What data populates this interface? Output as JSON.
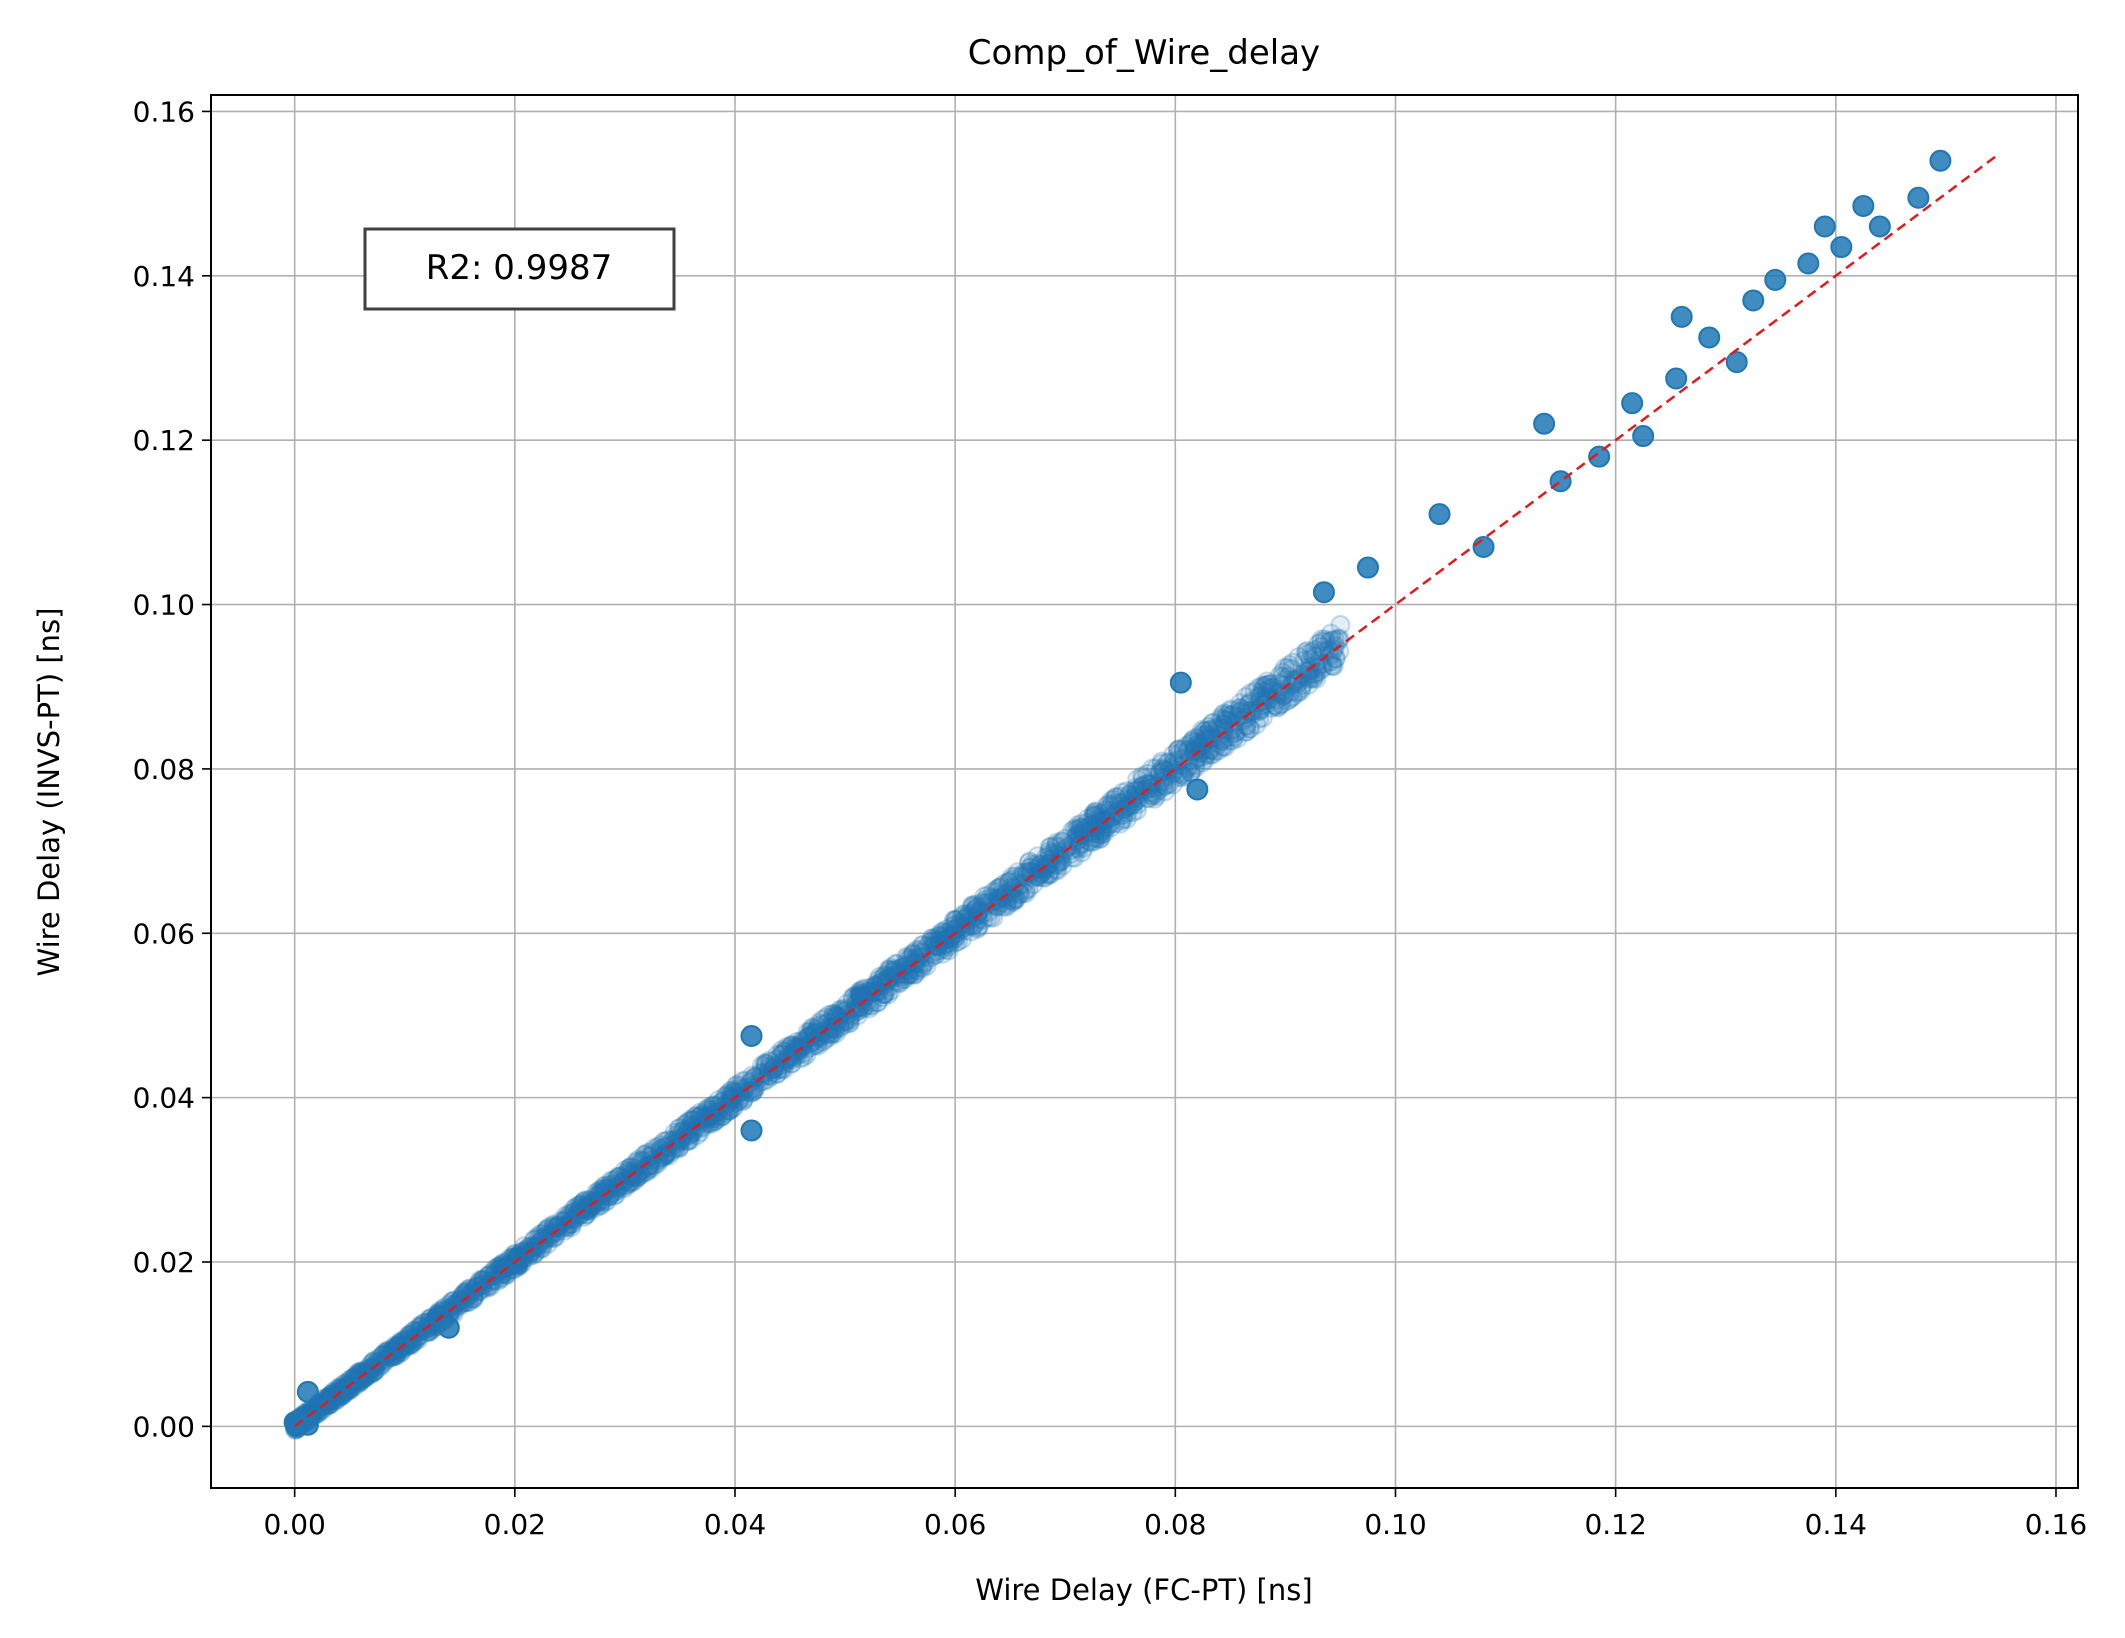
{
  "chart_data": {
    "type": "scatter",
    "title": "Comp_of_Wire_delay",
    "xlabel": "Wire Delay (FC-PT) [ns]",
    "ylabel": "Wire Delay (INVS-PT) [ns]",
    "xlim": [
      -0.0076,
      0.162
    ],
    "ylim": [
      -0.0075,
      0.162
    ],
    "xticks": [
      "0.00",
      "0.02",
      "0.04",
      "0.06",
      "0.08",
      "0.10",
      "0.12",
      "0.14",
      "0.16"
    ],
    "yticks": [
      "0.00",
      "0.02",
      "0.04",
      "0.06",
      "0.08",
      "0.10",
      "0.12",
      "0.14",
      "0.16"
    ],
    "grid": true,
    "annotation": "R2: 0.9987",
    "annotation_position": "top-left",
    "marker_color": "#1f77b4",
    "reference_line": {
      "label": "y = x",
      "color": "#e31a1c",
      "style": "dashed",
      "from": [
        0.0,
        0.0
      ],
      "to": [
        0.1545,
        0.1545
      ]
    },
    "series": [
      {
        "main_band": {
          "x_range": [
            0.0,
            0.095
          ],
          "approx_relation": "y ≈ x"
        },
        "points": [
          {
            "x": 0.0,
            "y": 0.0005
          },
          {
            "x": 0.0012,
            "y": 0.0042
          },
          {
            "x": 0.0012,
            "y": 0.0002
          },
          {
            "x": 0.014,
            "y": 0.012
          },
          {
            "x": 0.0415,
            "y": 0.036
          },
          {
            "x": 0.0415,
            "y": 0.0475
          },
          {
            "x": 0.082,
            "y": 0.0775
          },
          {
            "x": 0.0805,
            "y": 0.0905
          },
          {
            "x": 0.0935,
            "y": 0.1015
          },
          {
            "x": 0.0975,
            "y": 0.1045
          },
          {
            "x": 0.104,
            "y": 0.111
          },
          {
            "x": 0.108,
            "y": 0.107
          },
          {
            "x": 0.1135,
            "y": 0.122
          },
          {
            "x": 0.115,
            "y": 0.115
          },
          {
            "x": 0.1185,
            "y": 0.118
          },
          {
            "x": 0.1215,
            "y": 0.1245
          },
          {
            "x": 0.1225,
            "y": 0.1205
          },
          {
            "x": 0.1255,
            "y": 0.1275
          },
          {
            "x": 0.126,
            "y": 0.135
          },
          {
            "x": 0.1285,
            "y": 0.1325
          },
          {
            "x": 0.131,
            "y": 0.1295
          },
          {
            "x": 0.1325,
            "y": 0.137
          },
          {
            "x": 0.1345,
            "y": 0.1395
          },
          {
            "x": 0.1375,
            "y": 0.1415
          },
          {
            "x": 0.139,
            "y": 0.146
          },
          {
            "x": 0.1405,
            "y": 0.1435
          },
          {
            "x": 0.1425,
            "y": 0.1485
          },
          {
            "x": 0.144,
            "y": 0.146
          },
          {
            "x": 0.1475,
            "y": 0.1495
          },
          {
            "x": 0.1495,
            "y": 0.154
          }
        ]
      }
    ]
  }
}
